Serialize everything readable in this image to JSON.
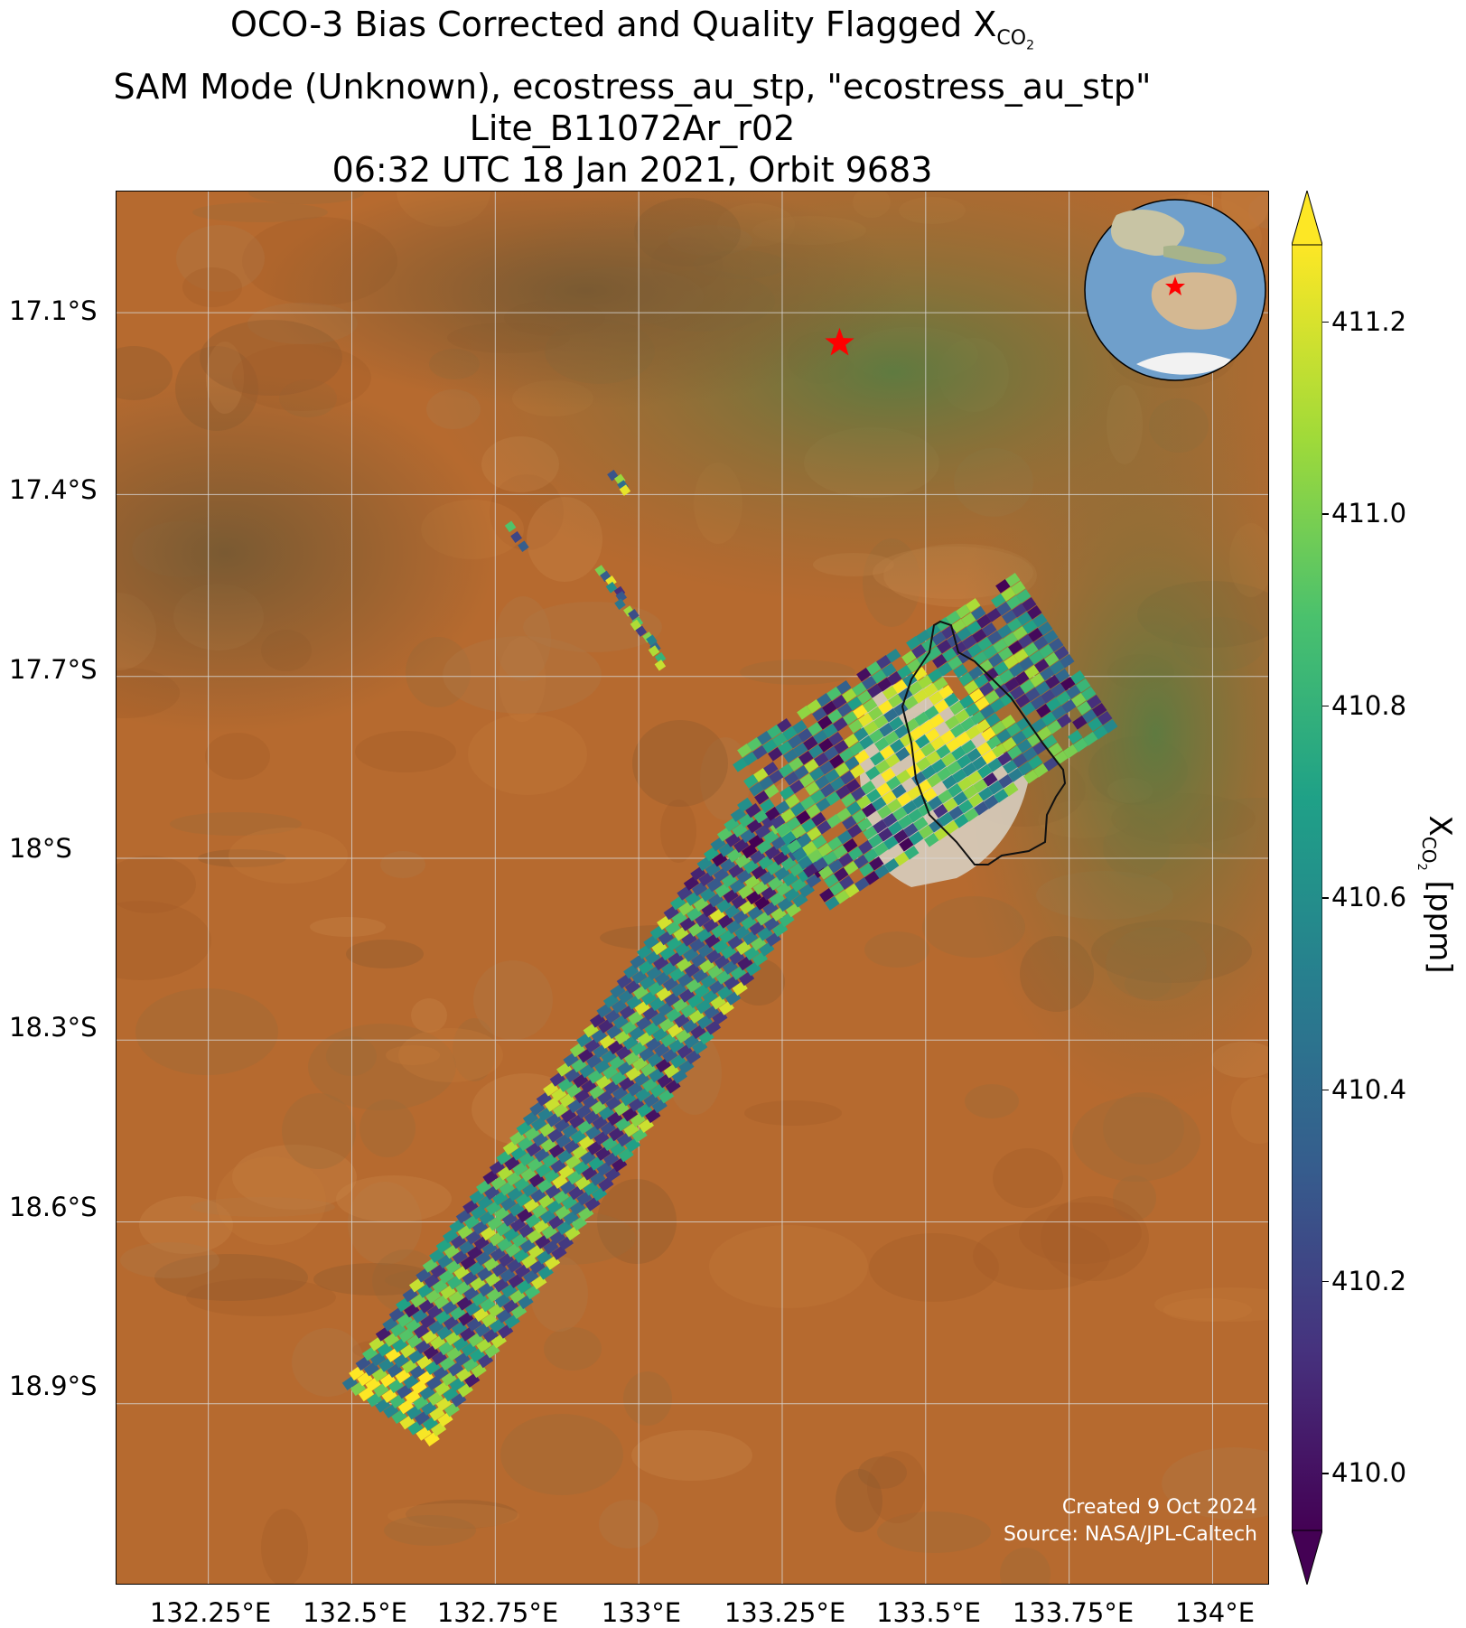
{
  "title": {
    "line1_prefix": "OCO-3 Bias Corrected and Quality Flagged X",
    "line1_sub": "CO",
    "line1_sub2": "2",
    "line2": "SAM Mode (Unknown), ecostress_au_stp, \"ecostress_au_stp\"",
    "line3": "Lite_B11072Ar_r02",
    "line4": "06:32 UTC 18 Jan 2021, Orbit 9683"
  },
  "map": {
    "lat_labels": [
      "17.1°S",
      "17.4°S",
      "17.7°S",
      "18°S",
      "18.3°S",
      "18.6°S",
      "18.9°S"
    ],
    "lon_labels": [
      "132.25°E",
      "132.5°E",
      "132.75°E",
      "133°E",
      "133.25°E",
      "133.5°E",
      "133.75°E",
      "134°E"
    ],
    "lon_range": [
      132.09,
      134.1
    ],
    "lat_range": [
      -19.2,
      -16.9
    ],
    "target_site": {
      "name": "star-marker",
      "lon": 133.35,
      "lat": -17.15,
      "color": "#ff0000"
    },
    "credit_line1": "Created 9 Oct 2024",
    "credit_line2": "Source: NASA/JPL-Caltech",
    "colors": {
      "land": "#b4672d",
      "vegetation": "#6c7a45",
      "salt_lake": "#d9d4c7"
    }
  },
  "colorbar": {
    "label_prefix": "X",
    "label_sub": "CO",
    "label_sub2": "2",
    "label_suffix": " [ppm]",
    "ticks": [
      "410.0",
      "410.2",
      "410.4",
      "410.6",
      "410.8",
      "411.0",
      "411.2"
    ],
    "min": 409.94,
    "max": 411.28,
    "colormap": "viridis"
  },
  "chart_data": {
    "type": "heatmap",
    "variable": "XCO2",
    "units": "ppm",
    "vmin": 409.94,
    "vmax": 411.28,
    "grid": true,
    "swath": {
      "main_strip": {
        "start_lon": 132.55,
        "start_lat": -18.9,
        "end_lon": 133.25,
        "end_lat": -17.93
      },
      "sam_block": {
        "center_lon": 133.5,
        "center_lat": -17.8
      },
      "scattered_fragments": [
        {
          "lon": 132.77,
          "lat": -17.45
        },
        {
          "lon": 132.93,
          "lat": -17.52
        },
        {
          "lon": 132.95,
          "lat": -17.36
        }
      ]
    }
  }
}
